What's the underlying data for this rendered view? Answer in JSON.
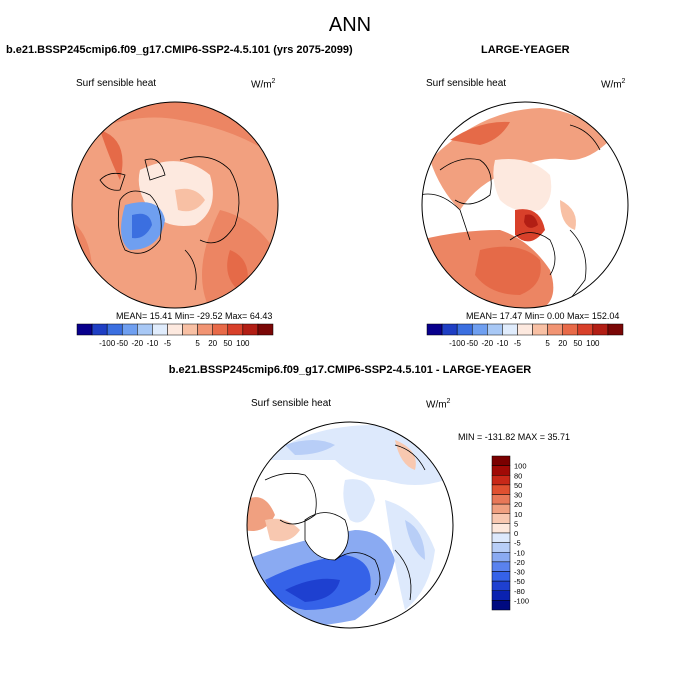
{
  "figure": {
    "title": "ANN"
  },
  "panels": [
    {
      "title": "b.e21.BSSP245cmip6.f09_g17.CMIP6-SSP2-4.5.101 (yrs 2075-2099)",
      "variable": "Surf sensible heat",
      "units": "W/m",
      "units_sup": "2",
      "stats": "MEAN= 15.41  Min= -29.52  Max= 64.43"
    },
    {
      "title": "LARGE-YEAGER",
      "variable": "Surf sensible heat",
      "units": "W/m",
      "units_sup": "2",
      "stats": "MEAN= 17.47  Min=  0.00  Max= 152.04"
    },
    {
      "title": "b.e21.BSSP245cmip6.f09_g17.CMIP6-SSP2-4.5.101 - LARGE-YEAGER",
      "variable": "Surf sensible heat",
      "units": "W/m",
      "units_sup": "2",
      "stats": "MIN = -131.82 MAX =  35.71"
    }
  ],
  "colorbar_abs": {
    "colors": [
      "#08008c",
      "#1f3fc4",
      "#3b6fe0",
      "#6f9ff0",
      "#a8c8f5",
      "#e0ecfc",
      "#fde9df",
      "#f8c0a4",
      "#f19473",
      "#e86a48",
      "#d8402a",
      "#b21e14",
      "#7a0706"
    ],
    "labels": [
      "-100",
      "-50",
      "-20",
      "-10",
      "-5",
      "",
      "5",
      "20",
      "50",
      "100"
    ]
  },
  "colorbar_diff": {
    "colors": [
      "#000a80",
      "#0a22b0",
      "#1e40d0",
      "#3562e8",
      "#5a82ee",
      "#8aaaf2",
      "#b8cef7",
      "#dde9fc",
      "#fde8dc",
      "#f8c8b0",
      "#f0a080",
      "#e87858",
      "#e05030",
      "#c82818",
      "#a00a06",
      "#7a0000"
    ],
    "labels": [
      "100",
      "80",
      "50",
      "30",
      "20",
      "10",
      "5",
      "0",
      "-5",
      "-10",
      "-20",
      "-30",
      "-50",
      "-80",
      "-100"
    ]
  },
  "chart_data": [
    {
      "type": "heatmap",
      "title": "b.e21.BSSP245cmip6.f09_g17.CMIP6-SSP2-4.5.101 (yrs 2075-2099)",
      "variable": "Surf sensible heat",
      "units": "W/m2",
      "projection": "north polar stereographic",
      "mean": 15.41,
      "min": -29.52,
      "max": 64.43,
      "levels": [
        -100,
        -50,
        -20,
        -10,
        -5,
        0,
        5,
        20,
        50,
        100
      ]
    },
    {
      "type": "heatmap",
      "title": "LARGE-YEAGER",
      "variable": "Surf sensible heat",
      "units": "W/m2",
      "projection": "north polar stereographic",
      "mean": 17.47,
      "min": 0.0,
      "max": 152.04,
      "levels": [
        -100,
        -50,
        -20,
        -10,
        -5,
        0,
        5,
        20,
        50,
        100
      ]
    },
    {
      "type": "heatmap",
      "title": "b.e21.BSSP245cmip6.f09_g17.CMIP6-SSP2-4.5.101 - LARGE-YEAGER",
      "variable": "Surf sensible heat",
      "units": "W/m2",
      "projection": "north polar stereographic",
      "min": -131.82,
      "max": 35.71,
      "levels": [
        -100,
        -80,
        -50,
        -30,
        -20,
        -10,
        -5,
        0,
        5,
        10,
        20,
        30,
        50,
        80,
        100
      ]
    }
  ]
}
